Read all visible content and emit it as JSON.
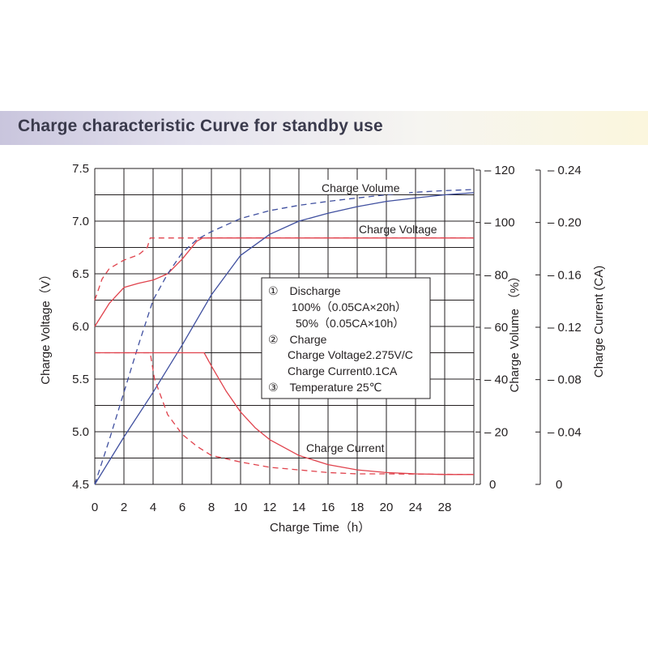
{
  "header": {
    "title": "Charge characteristic Curve for standby use"
  },
  "colors": {
    "voltage": "#e0424c",
    "volume": "#3f4f9f",
    "current": "#e0424c",
    "grid": "#231f20",
    "banner_start": "#c9c5dd",
    "banner_end": "#fbf6dd"
  },
  "chart_data": {
    "type": "line",
    "title": "Charge characteristic Curve for standby use",
    "xlabel": "Charge Time（h）",
    "xlim": [
      0,
      26
    ],
    "x_ticks": [
      0,
      2,
      4,
      6,
      8,
      10,
      12,
      14,
      16,
      18,
      20,
      24,
      28
    ],
    "x_tick_labels": [
      "0",
      "2",
      "4",
      "6",
      "8",
      "10",
      "12",
      "14",
      "16",
      "18",
      "20",
      "24",
      "28"
    ],
    "grid": true,
    "axes": {
      "voltage": {
        "label": "Charge Voltage（V）",
        "range": [
          4.5,
          7.5
        ],
        "ticks": [
          "4.5",
          "5.0",
          "5.5",
          "6.0",
          "6.5",
          "7.0",
          "7.5"
        ]
      },
      "volume": {
        "label": "Charge Volume （%）",
        "range": [
          0,
          120
        ],
        "ticks": [
          "0",
          "20",
          "40",
          "60",
          "80",
          "100",
          "120"
        ]
      },
      "current": {
        "label": "Charge Current (CA)",
        "range": [
          0,
          0.24
        ],
        "ticks": [
          "0",
          "0.04",
          "0.08",
          "0.12",
          "0.16",
          "0.20",
          "0.24"
        ]
      }
    },
    "curve_labels": {
      "charge_volume": "Charge Volume",
      "charge_voltage": "Charge Voltage",
      "charge_current": "Charge Current"
    },
    "series": [
      {
        "group": "charge_voltage",
        "variant": "100% (0.05CA×20h)",
        "axis": "voltage",
        "style": "solid",
        "color": "#e0424c",
        "points": [
          [
            0,
            6.0
          ],
          [
            1,
            6.22
          ],
          [
            2,
            6.37
          ],
          [
            3,
            6.41
          ],
          [
            4,
            6.44
          ],
          [
            5,
            6.5
          ],
          [
            6,
            6.64
          ],
          [
            7,
            6.81
          ],
          [
            7.4,
            6.84
          ],
          [
            26,
            6.84
          ]
        ]
      },
      {
        "group": "charge_voltage",
        "variant": "50% (0.05CA×10h)",
        "axis": "voltage",
        "style": "dashed",
        "color": "#e0424c",
        "points": [
          [
            0,
            6.25
          ],
          [
            0.5,
            6.45
          ],
          [
            1,
            6.55
          ],
          [
            2,
            6.63
          ],
          [
            3,
            6.68
          ],
          [
            3.6,
            6.75
          ],
          [
            3.8,
            6.84
          ],
          [
            26,
            6.84
          ]
        ]
      },
      {
        "group": "charge_volume",
        "variant": "100% (0.05CA×20h)",
        "axis": "volume",
        "style": "solid",
        "color": "#3f4f9f",
        "points": [
          [
            0,
            0
          ],
          [
            2,
            18
          ],
          [
            4,
            35
          ],
          [
            6,
            53
          ],
          [
            8,
            72
          ],
          [
            10,
            87
          ],
          [
            12,
            95
          ],
          [
            14,
            100
          ],
          [
            16,
            103
          ],
          [
            18,
            105.5
          ],
          [
            20,
            107.5
          ],
          [
            22,
            108.8
          ],
          [
            24,
            110
          ],
          [
            26,
            110.8
          ]
        ]
      },
      {
        "group": "charge_volume",
        "variant": "50% (0.05CA×10h)",
        "axis": "volume",
        "style": "dashed",
        "color": "#3f4f9f",
        "points": [
          [
            0,
            0
          ],
          [
            1,
            17
          ],
          [
            2,
            35
          ],
          [
            3,
            53
          ],
          [
            4,
            70
          ],
          [
            5,
            80
          ],
          [
            6,
            88
          ],
          [
            7,
            93
          ],
          [
            8,
            96
          ],
          [
            10,
            101
          ],
          [
            12,
            104
          ],
          [
            14,
            106
          ],
          [
            16,
            107.5
          ],
          [
            18,
            108.8
          ],
          [
            20,
            110
          ],
          [
            22,
            111
          ],
          [
            24,
            111.6
          ],
          [
            26,
            112
          ]
        ]
      },
      {
        "group": "charge_current",
        "variant": "100% (0.05CA×20h)",
        "axis": "current",
        "style": "solid",
        "color": "#e0424c",
        "points": [
          [
            0,
            0.1
          ],
          [
            7.5,
            0.1
          ],
          [
            8,
            0.09
          ],
          [
            9,
            0.071
          ],
          [
            10,
            0.055
          ],
          [
            11,
            0.043
          ],
          [
            12,
            0.034
          ],
          [
            14,
            0.022
          ],
          [
            16,
            0.015
          ],
          [
            18,
            0.011
          ],
          [
            20,
            0.009
          ],
          [
            22,
            0.008
          ],
          [
            24,
            0.0075
          ],
          [
            26,
            0.0075
          ]
        ]
      },
      {
        "group": "charge_current",
        "variant": "50% (0.05CA×10h)",
        "axis": "current",
        "style": "dashed",
        "color": "#e0424c",
        "points": [
          [
            0,
            0.1
          ],
          [
            3.8,
            0.1
          ],
          [
            4.1,
            0.08
          ],
          [
            5,
            0.053
          ],
          [
            6,
            0.038
          ],
          [
            7,
            0.029
          ],
          [
            8,
            0.022
          ],
          [
            10,
            0.017
          ],
          [
            12,
            0.013
          ],
          [
            14,
            0.011
          ],
          [
            16,
            0.009
          ],
          [
            18,
            0.008
          ],
          [
            20,
            0.008
          ],
          [
            26,
            0.0075
          ]
        ]
      }
    ],
    "legend_box": {
      "lines": [
        "①　Discharge",
        "100%（0.05CA×20h）",
        "50%（0.05CA×10h）",
        "②　Charge",
        "Charge Voltage2.275V/C",
        "Charge Current0.1CA",
        "③　Temperature 25℃"
      ]
    }
  }
}
